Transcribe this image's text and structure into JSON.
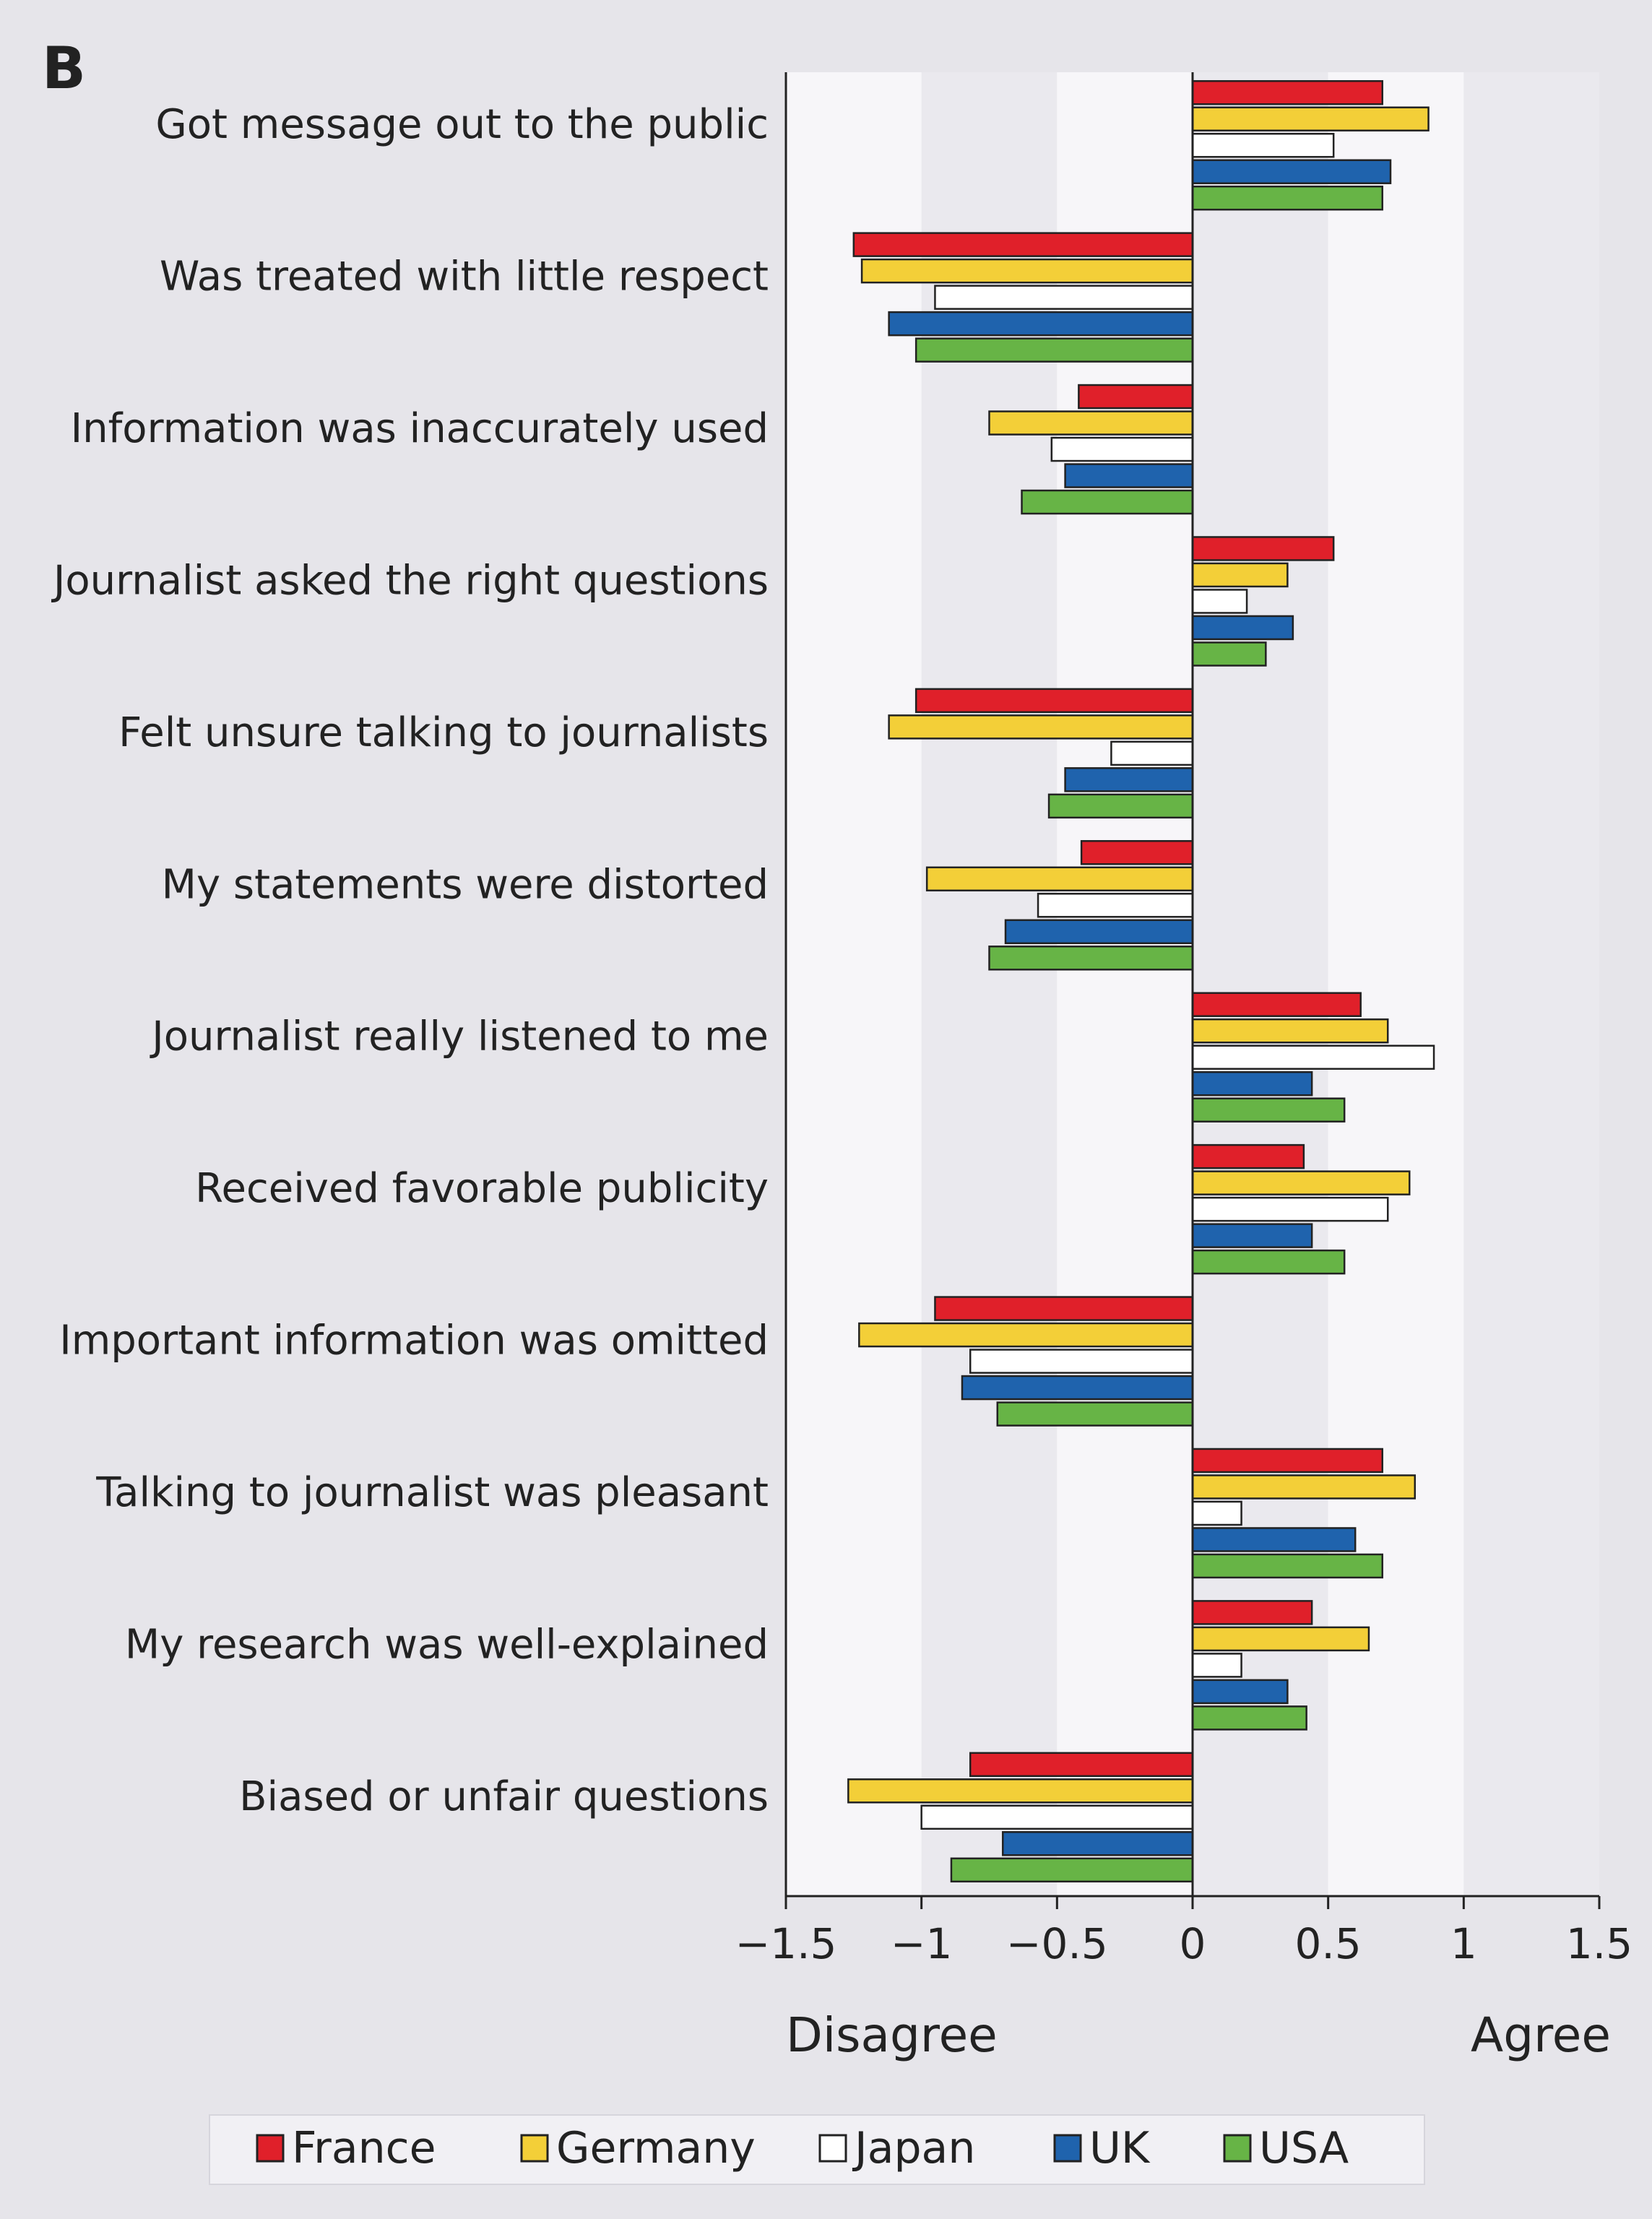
{
  "panel_label": "B",
  "disagree_label": "Disagree",
  "agree_label": "Agree",
  "colors": {
    "France": "#e0202a",
    "Germany": "#f3cf38",
    "Japan": "#ffffff",
    "UK": "#1f63ad",
    "USA": "#67b446"
  },
  "chart_data": {
    "type": "bar",
    "orientation": "horizontal",
    "title": "",
    "xlabel": "",
    "ylabel": "",
    "xlim": [
      -1.5,
      1.5
    ],
    "xticks": [
      -1.5,
      -1,
      -0.5,
      0,
      0.5,
      1,
      1.5
    ],
    "xtick_labels": [
      "−1.5",
      "−1",
      "−0.5",
      "0",
      "0.5",
      "1",
      "1.5"
    ],
    "legend_position": "bottom",
    "categories": [
      "Got message out to the public",
      "Was treated with little respect",
      "Information was inaccurately used",
      "Journalist asked the right questions",
      "Felt unsure talking to journalists",
      "My statements were distorted",
      "Journalist really listened to me",
      "Received favorable publicity",
      "Important information was omitted",
      "Talking to journalist was pleasant",
      "My research was well-explained",
      "Biased or unfair questions"
    ],
    "series": [
      {
        "name": "France",
        "values": [
          0.7,
          -1.25,
          -0.42,
          0.52,
          -1.02,
          -0.41,
          0.62,
          0.41,
          -0.95,
          0.7,
          0.44,
          -0.82
        ]
      },
      {
        "name": "Germany",
        "values": [
          0.87,
          -1.22,
          -0.75,
          0.35,
          -1.12,
          -0.98,
          0.72,
          0.8,
          -1.23,
          0.82,
          0.65,
          -1.27
        ]
      },
      {
        "name": "Japan",
        "values": [
          0.52,
          -0.95,
          -0.52,
          0.2,
          -0.3,
          -0.57,
          0.89,
          0.72,
          -0.82,
          0.18,
          0.18,
          -1.0
        ]
      },
      {
        "name": "UK",
        "values": [
          0.73,
          -1.12,
          -0.47,
          0.37,
          -0.47,
          -0.69,
          0.44,
          0.44,
          -0.85,
          0.6,
          0.35,
          -0.7
        ]
      },
      {
        "name": "USA",
        "values": [
          0.7,
          -1.02,
          -0.63,
          0.27,
          -0.53,
          -0.75,
          0.56,
          0.56,
          -0.72,
          0.7,
          0.42,
          -0.89
        ]
      }
    ]
  }
}
